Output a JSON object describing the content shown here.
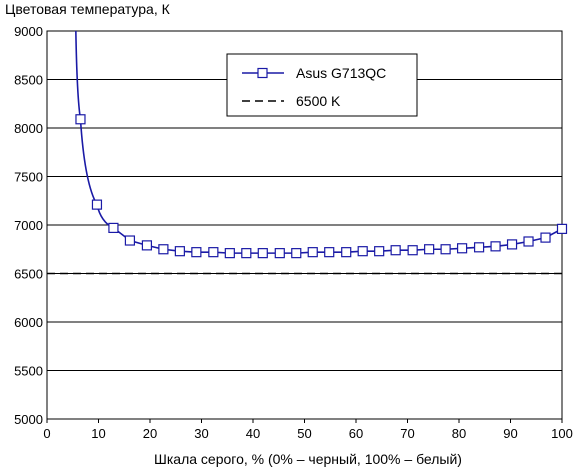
{
  "chart_data": {
    "type": "line",
    "title": "Цветовая температура, К",
    "xlabel": "Шкала серого, % (0% – черный, 100% – белый)",
    "ylabel": "",
    "xlim": [
      0,
      100
    ],
    "ylim": [
      5000,
      9000
    ],
    "x_ticks": [
      0,
      10,
      20,
      30,
      40,
      50,
      60,
      70,
      80,
      90,
      100
    ],
    "y_ticks": [
      5000,
      5500,
      6000,
      6500,
      7000,
      7500,
      8000,
      8500,
      9000
    ],
    "grid": "horizontal",
    "legend_position": "top-right",
    "series": [
      {
        "name": "Asus G713QC",
        "color": "#1a1aa6",
        "marker": "square-open",
        "x": [
          6.5,
          9.7,
          12.9,
          16.1,
          19.4,
          22.6,
          25.8,
          29.0,
          32.3,
          35.5,
          38.7,
          41.9,
          45.2,
          48.4,
          51.6,
          54.8,
          58.1,
          61.3,
          64.5,
          67.7,
          71.0,
          74.2,
          77.4,
          80.6,
          83.9,
          87.1,
          90.3,
          93.5,
          96.8,
          100.0
        ],
        "y": [
          8090,
          7210,
          6970,
          6840,
          6790,
          6750,
          6730,
          6720,
          6720,
          6710,
          6710,
          6710,
          6710,
          6710,
          6720,
          6720,
          6720,
          6730,
          6730,
          6740,
          6740,
          6750,
          6750,
          6760,
          6770,
          6780,
          6800,
          6830,
          6870,
          6960
        ],
        "curve_start": [
          5.6,
          9000
        ]
      },
      {
        "name": "6500 K",
        "color": "#000000",
        "dash": "dashed",
        "x": [
          0,
          100
        ],
        "y": [
          6500,
          6500
        ]
      }
    ]
  }
}
